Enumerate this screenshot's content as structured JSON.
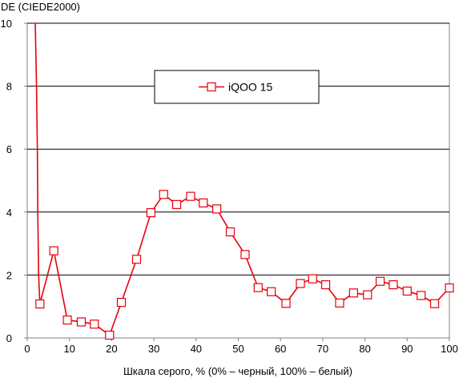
{
  "chart_data": {
    "type": "line",
    "ylabel": "DE (CIEDE2000)",
    "xlabel": "Шкала серого, % (0% – черный, 100% – белый)",
    "xlim": [
      0,
      100
    ],
    "ylim": [
      0,
      10
    ],
    "xticks": [
      0,
      10,
      20,
      30,
      40,
      50,
      60,
      70,
      80,
      90,
      100
    ],
    "yticks": [
      0,
      2,
      4,
      6,
      8,
      10
    ],
    "grid": "horizontal",
    "legend_position": "top-center",
    "series": [
      {
        "name": "iQOO 15",
        "color": "#e8000b",
        "marker": "square-open",
        "leading_line": [
          [
            1.9,
            10.0
          ],
          [
            2.2,
            8.0
          ],
          [
            2.4,
            6.0
          ],
          [
            2.5,
            4.0
          ],
          [
            2.7,
            2.0
          ],
          [
            3.0,
            1.08
          ]
        ],
        "points": [
          [
            3.0,
            1.08
          ],
          [
            6.3,
            2.77
          ],
          [
            9.5,
            0.57
          ],
          [
            12.8,
            0.51
          ],
          [
            15.9,
            0.44
          ],
          [
            19.5,
            0.09
          ],
          [
            22.3,
            1.13
          ],
          [
            25.9,
            2.5
          ],
          [
            29.3,
            3.98
          ],
          [
            32.3,
            4.56
          ],
          [
            35.4,
            4.24
          ],
          [
            38.7,
            4.5
          ],
          [
            41.7,
            4.29
          ],
          [
            44.9,
            4.1
          ],
          [
            48.1,
            3.37
          ],
          [
            51.6,
            2.65
          ],
          [
            54.7,
            1.6
          ],
          [
            57.8,
            1.47
          ],
          [
            61.3,
            1.1
          ],
          [
            64.7,
            1.73
          ],
          [
            67.6,
            1.88
          ],
          [
            70.7,
            1.69
          ],
          [
            74.0,
            1.11
          ],
          [
            77.3,
            1.43
          ],
          [
            80.6,
            1.37
          ],
          [
            83.6,
            1.8
          ],
          [
            86.7,
            1.69
          ],
          [
            90.0,
            1.49
          ],
          [
            93.3,
            1.35
          ],
          [
            96.5,
            1.09
          ],
          [
            100.0,
            1.59
          ]
        ]
      }
    ]
  }
}
